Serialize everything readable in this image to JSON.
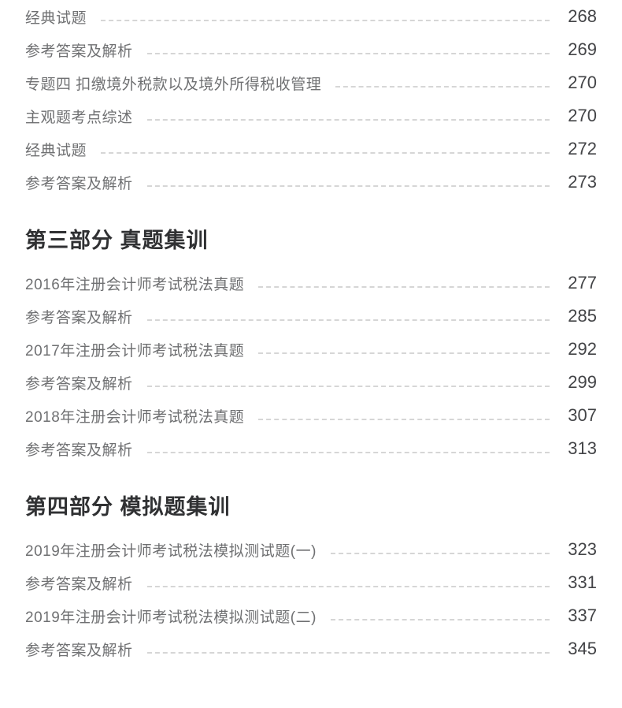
{
  "theme": {
    "page_background": "#ffffff",
    "item_text_color": "#6f7072",
    "page_number_color": "#434447",
    "header_text_color": "#303133",
    "leader_dash_color": "#d6d6d6"
  },
  "toc": {
    "sections": [
      {
        "header": null,
        "items": [
          {
            "label": "经典试题",
            "page": "268"
          },
          {
            "label": "参考答案及解析",
            "page": "269"
          },
          {
            "label": "专题四 扣缴境外税款以及境外所得税收管理",
            "page": "270"
          },
          {
            "label": "主观题考点综述",
            "page": "270"
          },
          {
            "label": "经典试题",
            "page": "272"
          },
          {
            "label": "参考答案及解析",
            "page": "273"
          }
        ]
      },
      {
        "header": "第三部分 真题集训",
        "items": [
          {
            "label": "2016年注册会计师考试税法真题",
            "page": "277"
          },
          {
            "label": "参考答案及解析",
            "page": "285"
          },
          {
            "label": "2017年注册会计师考试税法真题",
            "page": "292"
          },
          {
            "label": "参考答案及解析",
            "page": "299"
          },
          {
            "label": "2018年注册会计师考试税法真题",
            "page": "307"
          },
          {
            "label": "参考答案及解析",
            "page": "313"
          }
        ]
      },
      {
        "header": "第四部分 模拟题集训",
        "items": [
          {
            "label": "2019年注册会计师考试税法模拟测试题(一)",
            "page": "323"
          },
          {
            "label": "参考答案及解析",
            "page": "331"
          },
          {
            "label": "2019年注册会计师考试税法模拟测试题(二)",
            "page": "337"
          },
          {
            "label": "参考答案及解析",
            "page": "345"
          }
        ]
      }
    ]
  }
}
